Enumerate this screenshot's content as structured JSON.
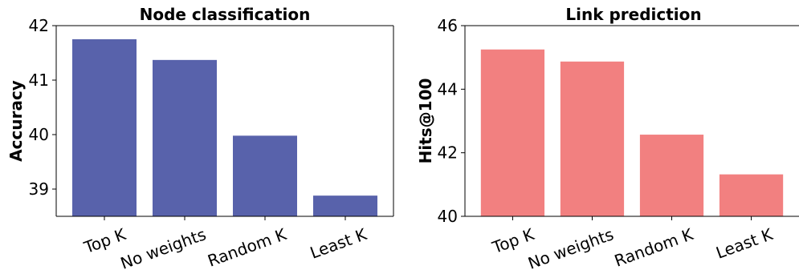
{
  "chart_data": [
    {
      "type": "bar",
      "title": "Node classification",
      "xlabel": "",
      "ylabel": "Accuracy",
      "categories": [
        "Top K",
        "No weights",
        "Random K",
        "Least K"
      ],
      "values": [
        41.75,
        41.37,
        39.98,
        38.88
      ],
      "ylim": [
        38.5,
        42
      ],
      "yticks": [
        39,
        40,
        41,
        42
      ],
      "color": "#5862ab",
      "grid": false,
      "frame": "full"
    },
    {
      "type": "bar",
      "title": "Link prediction",
      "xlabel": "",
      "ylabel": "Hits@100",
      "categories": [
        "Top K",
        "No weights",
        "Random K",
        "Least K"
      ],
      "values": [
        45.25,
        44.87,
        42.57,
        41.32
      ],
      "ylim": [
        40,
        46
      ],
      "yticks": [
        40,
        42,
        44,
        46
      ],
      "color": "#f28080",
      "grid": false,
      "frame": "left-bottom-top"
    }
  ]
}
